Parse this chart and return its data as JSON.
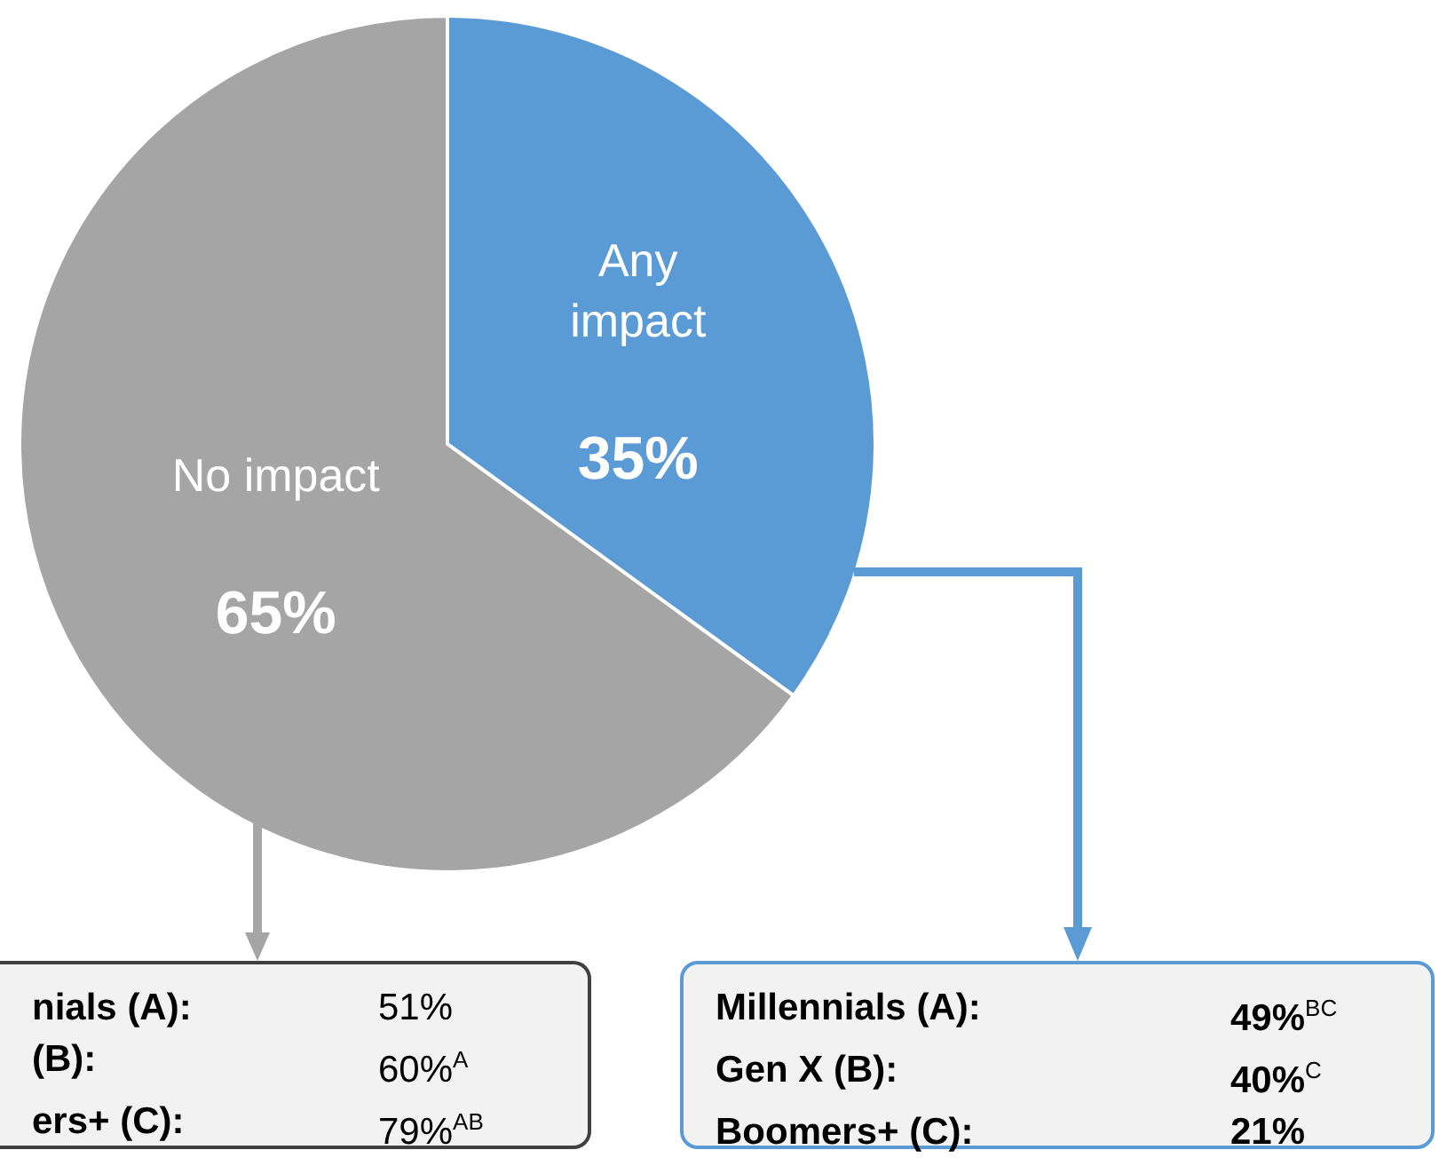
{
  "chart_data": {
    "type": "pie",
    "categories": [
      "Any impact",
      "No impact"
    ],
    "values": [
      35,
      65
    ],
    "colors": [
      "#5b9bd5",
      "#a5a5a5"
    ],
    "value_labels": [
      "35%",
      "65%"
    ],
    "legend": false,
    "annotations": [
      "nials (A):",
      "51%",
      "(B):",
      "60%$^{A}$",
      "ers+ (C):",
      "79%$^{AB}$",
      "Millennials (A):",
      "49%$^{BC}$",
      "Gen X (B):",
      "40%$^{C}$",
      "Boomers+ (C):",
      "21%"
    ]
  }
}
